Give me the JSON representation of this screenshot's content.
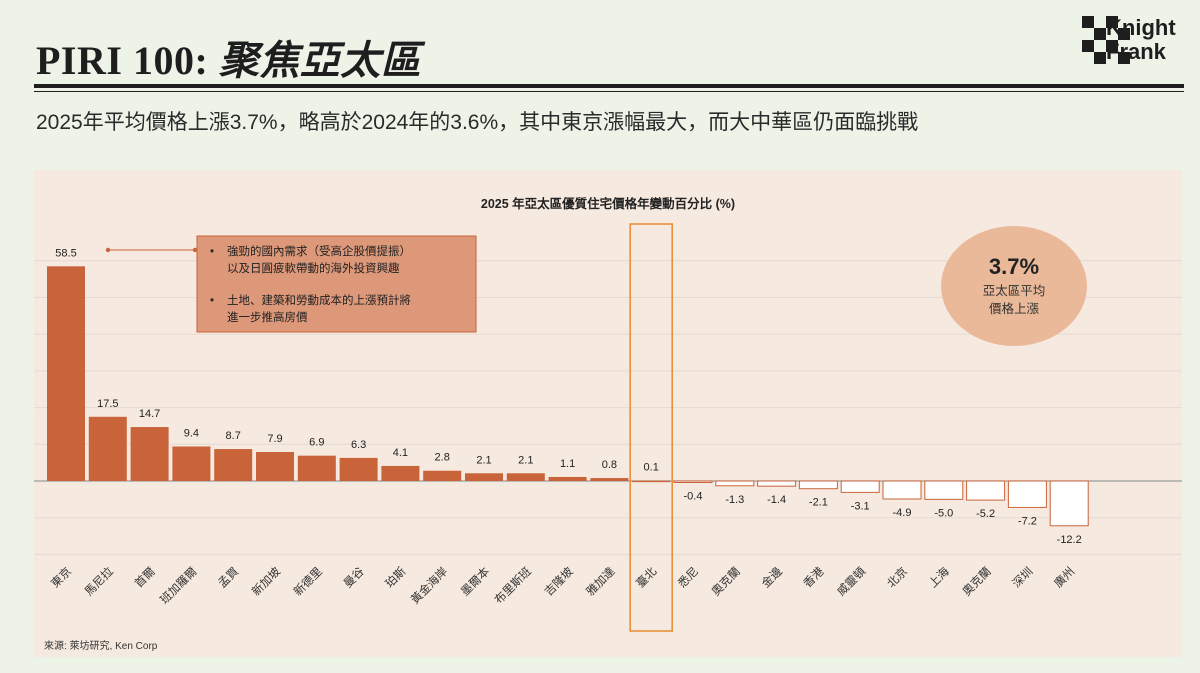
{
  "header": {
    "title_latin": "PIRI 100:",
    "title_zh": "聚焦亞太區",
    "brand_line1": "Knight",
    "brand_line2": "Frank"
  },
  "subtitle": "2025年平均價格上漲3.7%，略高於2024年的3.6%，其中東京漲幅最大，而大中華區仍面臨挑戰",
  "callout": {
    "bullets": [
      [
        "強勁的國內需求（受高企股價提振）",
        "以及日圓疲軟帶動的海外投資興趣"
      ],
      [
        "土地、建築和勞動成本的上漲預計將",
        "進一步推高房價"
      ]
    ]
  },
  "average_badge": {
    "value": "3.7%",
    "line1": "亞太區平均",
    "line2": "價格上漲"
  },
  "source": "來源: 萊坊研究, Ken Corp",
  "colors": {
    "bar_positive": "#c9643a",
    "bar_negative_stroke": "#c9643a",
    "highlight_box": "#e8913c",
    "badge_fill": "#eab999",
    "callout_fill": "#dd987a",
    "panel_bg": "#f6e9df"
  },
  "chart_data": {
    "type": "bar",
    "title": "2025 年亞太區優質住宅價格年變動百分比 (%)",
    "categories": [
      "東京",
      "馬尼拉",
      "首爾",
      "班加羅爾",
      "孟買",
      "新加坡",
      "新德里",
      "曼谷",
      "珀斯",
      "黃金海岸",
      "墨爾本",
      "布里斯班",
      "吉隆坡",
      "雅加達",
      "臺北",
      "悉尼",
      "奧克蘭",
      "金邊",
      "香港",
      "威靈頓",
      "北京",
      "上海",
      "奧克蘭",
      "深圳",
      "廣州"
    ],
    "values": [
      58.5,
      17.5,
      14.7,
      9.4,
      8.7,
      7.9,
      6.9,
      6.3,
      4.1,
      2.8,
      2.1,
      2.1,
      1.1,
      0.8,
      0.1,
      -0.4,
      -1.3,
      -1.4,
      -2.1,
      -3.1,
      -4.9,
      -5.0,
      -5.2,
      -7.2,
      -12.2
    ],
    "value_labels": [
      "58.5",
      "17.5",
      "14.7",
      "9.4",
      "8.7",
      "7.9",
      "6.9",
      "6.3",
      "4.1",
      "2.8",
      "2.1",
      "2.1",
      "1.1",
      "0.8",
      "0.1",
      "-0.4",
      "-1.3",
      "-1.4",
      "-2.1",
      "-3.1",
      "-4.9",
      "-5.0",
      "-5.2",
      "-7.2",
      "-12.2"
    ],
    "highlight_category": "臺北",
    "ylim": [
      -20,
      60
    ],
    "grid": true
  }
}
